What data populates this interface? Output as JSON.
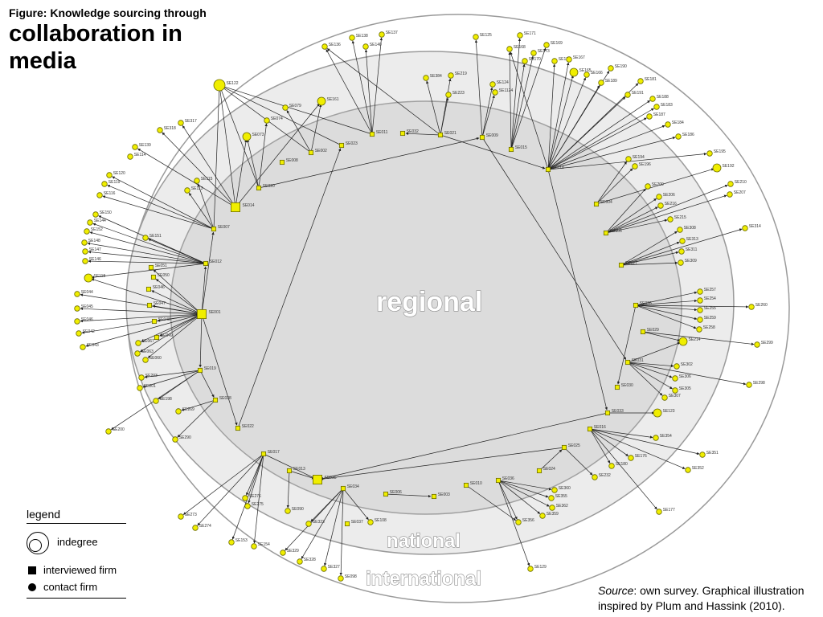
{
  "figure": {
    "caption_line1": "Figure: Knowledge sourcing through",
    "caption_line2": "collaboration in",
    "caption_line3": "media"
  },
  "rings": {
    "regional": "regional",
    "national": "national",
    "international": "international"
  },
  "colors": {
    "node_fill": "#f0ee00",
    "node_stroke": "#6b6b00",
    "ring_outer": "#ffffff",
    "ring_mid": "#ececec",
    "ring_inner": "#dddddd",
    "edge": "#222222"
  },
  "legend": {
    "title": "legend",
    "indegree": "indegree",
    "interviewed_firm": "interviewed firm",
    "contact_firm": "contact firm"
  },
  "source": {
    "label": "Source",
    "text": ": own survey. Graphical illustration inspired by Plum and Hassink (2010)."
  },
  "network": {
    "nodes": [
      {
        "id": "SE001",
        "type": "firm",
        "s": "l"
      },
      {
        "id": "SE002",
        "type": "firm"
      },
      {
        "id": "SE003",
        "type": "firm"
      },
      {
        "id": "SE004",
        "type": "firm"
      },
      {
        "id": "SE005",
        "type": "firm"
      },
      {
        "id": "SE006",
        "type": "firm"
      },
      {
        "id": "SE007",
        "type": "firm"
      },
      {
        "id": "SE008",
        "type": "firm"
      },
      {
        "id": "SE009",
        "type": "firm"
      },
      {
        "id": "SE010",
        "type": "firm"
      },
      {
        "id": "SE011",
        "type": "firm"
      },
      {
        "id": "SE012",
        "type": "firm"
      },
      {
        "id": "SE013",
        "type": "firm"
      },
      {
        "id": "SE014",
        "type": "firm",
        "s": "l"
      },
      {
        "id": "SE015",
        "type": "firm"
      },
      {
        "id": "SE016",
        "type": "firm"
      },
      {
        "id": "SE017",
        "type": "firm"
      },
      {
        "id": "SE018",
        "type": "firm"
      },
      {
        "id": "SE019",
        "type": "firm"
      },
      {
        "id": "SE020",
        "type": "firm"
      },
      {
        "id": "SE021",
        "type": "firm"
      },
      {
        "id": "SE022",
        "type": "firm"
      },
      {
        "id": "SE023",
        "type": "firm"
      },
      {
        "id": "SE024",
        "type": "firm"
      },
      {
        "id": "SE025",
        "type": "firm"
      },
      {
        "id": "SE026",
        "type": "firm"
      },
      {
        "id": "SE027",
        "type": "firm"
      },
      {
        "id": "SE028",
        "type": "firm"
      },
      {
        "id": "SE029",
        "type": "firm"
      },
      {
        "id": "SE030",
        "type": "firm"
      },
      {
        "id": "SE031",
        "type": "firm"
      },
      {
        "id": "SE032",
        "type": "firm"
      },
      {
        "id": "SE033",
        "type": "firm"
      },
      {
        "id": "SE034",
        "type": "firm"
      },
      {
        "id": "SE035",
        "type": "firm",
        "s": "l"
      },
      {
        "id": "SE036",
        "type": "firm"
      },
      {
        "id": "SE037",
        "type": "firm"
      },
      {
        "id": "SE046",
        "type": "firm"
      },
      {
        "id": "SE047",
        "type": "firm"
      },
      {
        "id": "SE048",
        "type": "firm"
      },
      {
        "id": "SE049",
        "type": "firm"
      },
      {
        "id": "SE050",
        "type": "firm"
      },
      {
        "id": "SE051",
        "type": "firm"
      },
      {
        "id": "SE122",
        "type": "contact",
        "s": "l"
      },
      {
        "id": "SE161",
        "type": "contact",
        "s": "m"
      },
      {
        "id": "SE123",
        "type": "contact",
        "s": "m"
      },
      {
        "id": "SE214",
        "type": "contact",
        "s": "m"
      },
      {
        "id": "SE192",
        "type": "contact",
        "s": "m"
      },
      {
        "id": "SE165",
        "type": "contact",
        "s": "m"
      },
      {
        "id": "SE118",
        "type": "contact",
        "s": "m"
      },
      {
        "id": "SE073",
        "type": "contact",
        "s": "m"
      },
      {
        "id": "SE136",
        "type": "contact"
      },
      {
        "id": "SE138",
        "type": "contact"
      },
      {
        "id": "SE137",
        "type": "contact"
      },
      {
        "id": "SE140",
        "type": "contact"
      },
      {
        "id": "SE125",
        "type": "contact"
      },
      {
        "id": "SE171",
        "type": "contact"
      },
      {
        "id": "SE168",
        "type": "contact"
      },
      {
        "id": "SE169",
        "type": "contact"
      },
      {
        "id": "SE170",
        "type": "contact"
      },
      {
        "id": "SE173",
        "type": "contact"
      },
      {
        "id": "SE172",
        "type": "contact"
      },
      {
        "id": "SE167",
        "type": "contact"
      },
      {
        "id": "SE166",
        "type": "contact"
      },
      {
        "id": "SE190",
        "type": "contact"
      },
      {
        "id": "SE189",
        "type": "contact"
      },
      {
        "id": "SE181",
        "type": "contact"
      },
      {
        "id": "SE191",
        "type": "contact"
      },
      {
        "id": "SE188",
        "type": "contact"
      },
      {
        "id": "SE183",
        "type": "contact"
      },
      {
        "id": "SE187",
        "type": "contact"
      },
      {
        "id": "SE184",
        "type": "contact"
      },
      {
        "id": "SE186",
        "type": "contact"
      },
      {
        "id": "SE195",
        "type": "contact"
      },
      {
        "id": "SE194",
        "type": "contact"
      },
      {
        "id": "SE196",
        "type": "contact"
      },
      {
        "id": "SE210",
        "type": "contact"
      },
      {
        "id": "SE207",
        "type": "contact"
      },
      {
        "id": "SE209",
        "type": "contact"
      },
      {
        "id": "SE206",
        "type": "contact"
      },
      {
        "id": "SE216",
        "type": "contact"
      },
      {
        "id": "SE215",
        "type": "contact"
      },
      {
        "id": "SE314",
        "type": "contact"
      },
      {
        "id": "SE308",
        "type": "contact"
      },
      {
        "id": "SE313",
        "type": "contact"
      },
      {
        "id": "SE311",
        "type": "contact"
      },
      {
        "id": "SE309",
        "type": "contact"
      },
      {
        "id": "SE257",
        "type": "contact"
      },
      {
        "id": "SE254",
        "type": "contact"
      },
      {
        "id": "SE255",
        "type": "contact"
      },
      {
        "id": "SE260",
        "type": "contact"
      },
      {
        "id": "SE259",
        "type": "contact"
      },
      {
        "id": "SE258",
        "type": "contact"
      },
      {
        "id": "SE299",
        "type": "contact"
      },
      {
        "id": "SE302",
        "type": "contact"
      },
      {
        "id": "SE306",
        "type": "contact"
      },
      {
        "id": "SE305",
        "type": "contact"
      },
      {
        "id": "SE307",
        "type": "contact"
      },
      {
        "id": "SE298",
        "type": "contact"
      },
      {
        "id": "SE354",
        "type": "contact"
      },
      {
        "id": "SE351",
        "type": "contact"
      },
      {
        "id": "SE352",
        "type": "contact"
      },
      {
        "id": "SE176",
        "type": "contact"
      },
      {
        "id": "SE180",
        "type": "contact"
      },
      {
        "id": "SE232",
        "type": "contact"
      },
      {
        "id": "SE177",
        "type": "contact"
      },
      {
        "id": "SE360",
        "type": "contact"
      },
      {
        "id": "SE355",
        "type": "contact"
      },
      {
        "id": "SE362",
        "type": "contact"
      },
      {
        "id": "SE359",
        "type": "contact"
      },
      {
        "id": "SE356",
        "type": "contact"
      },
      {
        "id": "SE129",
        "type": "contact"
      },
      {
        "id": "SE108",
        "type": "contact"
      },
      {
        "id": "SE098",
        "type": "contact"
      },
      {
        "id": "SE327",
        "type": "contact"
      },
      {
        "id": "SE328",
        "type": "contact"
      },
      {
        "id": "SE329",
        "type": "contact"
      },
      {
        "id": "SE323",
        "type": "contact"
      },
      {
        "id": "SE090",
        "type": "contact"
      },
      {
        "id": "SE154",
        "type": "contact"
      },
      {
        "id": "SE153",
        "type": "contact"
      },
      {
        "id": "SE274",
        "type": "contact"
      },
      {
        "id": "SE273",
        "type": "contact"
      },
      {
        "id": "SE275",
        "type": "contact"
      },
      {
        "id": "SE276",
        "type": "contact"
      },
      {
        "id": "SE269",
        "type": "contact"
      },
      {
        "id": "SE290",
        "type": "contact"
      },
      {
        "id": "SE200",
        "type": "contact"
      },
      {
        "id": "SE198",
        "type": "contact"
      },
      {
        "id": "SE201",
        "type": "contact"
      },
      {
        "id": "SE203",
        "type": "contact"
      },
      {
        "id": "SE044",
        "type": "contact"
      },
      {
        "id": "SE045",
        "type": "contact"
      },
      {
        "id": "SE046c",
        "type": "contact"
      },
      {
        "id": "SE042",
        "type": "contact"
      },
      {
        "id": "SE043",
        "type": "contact"
      },
      {
        "id": "SE120",
        "type": "contact"
      },
      {
        "id": "SE119",
        "type": "contact"
      },
      {
        "id": "SE116",
        "type": "contact"
      },
      {
        "id": "SE150",
        "type": "contact"
      },
      {
        "id": "SE144",
        "type": "contact"
      },
      {
        "id": "SE152",
        "type": "contact"
      },
      {
        "id": "SE148",
        "type": "contact"
      },
      {
        "id": "SE147",
        "type": "contact"
      },
      {
        "id": "SE146",
        "type": "contact"
      },
      {
        "id": "SE151",
        "type": "contact"
      },
      {
        "id": "SE139",
        "type": "contact"
      },
      {
        "id": "SE114",
        "type": "contact"
      },
      {
        "id": "SE318",
        "type": "contact"
      },
      {
        "id": "SE317",
        "type": "contact"
      },
      {
        "id": "SE113",
        "type": "contact"
      },
      {
        "id": "SE115",
        "type": "contact"
      },
      {
        "id": "SE074",
        "type": "contact"
      },
      {
        "id": "SE079",
        "type": "contact"
      },
      {
        "id": "SE219",
        "type": "contact"
      },
      {
        "id": "SE223",
        "type": "contact"
      },
      {
        "id": "SE124",
        "type": "contact"
      },
      {
        "id": "SE1124",
        "type": "contact"
      },
      {
        "id": "SE384",
        "type": "contact"
      },
      {
        "id": "SE063",
        "type": "contact"
      },
      {
        "id": "SE060",
        "type": "contact"
      },
      {
        "id": "SE067",
        "type": "contact"
      }
    ]
  }
}
